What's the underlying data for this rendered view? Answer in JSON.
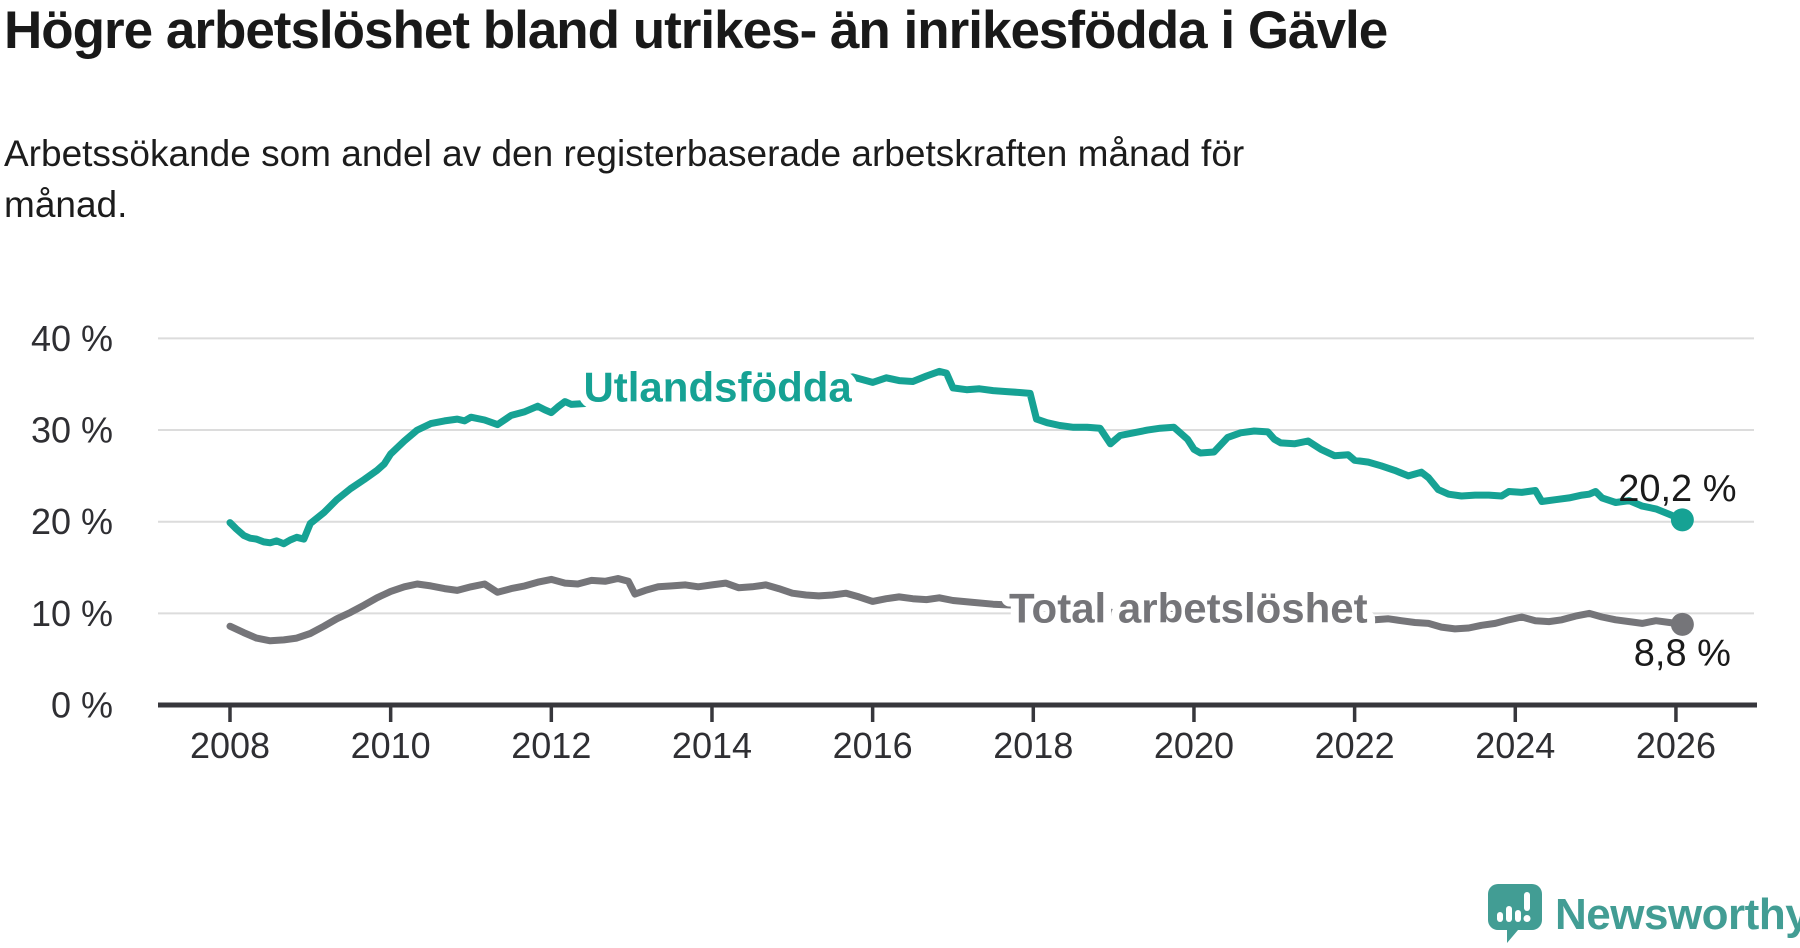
{
  "header": {
    "title": "Högre arbetslöshet bland utrikes- än inrikesfödda i Gävle",
    "subtitle": "Arbetssökande som andel av den registerbaserade arbetskraften månad för månad."
  },
  "footer": {
    "brand": "Newsworthy",
    "brand_color": "#429d94"
  },
  "chart_data": {
    "type": "line",
    "title": "Högre arbetslöshet bland utrikes- än inrikesfödda i Gävle",
    "xlabel": "",
    "ylabel": "",
    "x_domain": [
      2008,
      2026.2
    ],
    "ylim": [
      0,
      42
    ],
    "grid": true,
    "gridline_color": "#dcdcdc",
    "axis_color": "#37373c",
    "tick_label_color": "#2f2f33",
    "value_label_color": "#1a1a1a",
    "y_ticks": [
      {
        "value": 0,
        "label": "0 %"
      },
      {
        "value": 10,
        "label": "10 %"
      },
      {
        "value": 20,
        "label": "20 %"
      },
      {
        "value": 30,
        "label": "30 %"
      },
      {
        "value": 40,
        "label": "40 %"
      }
    ],
    "x_ticks": [
      {
        "value": 2008,
        "label": "2008"
      },
      {
        "value": 2010,
        "label": "2010"
      },
      {
        "value": 2012,
        "label": "2012"
      },
      {
        "value": 2014,
        "label": "2014"
      },
      {
        "value": 2016,
        "label": "2016"
      },
      {
        "value": 2018,
        "label": "2018"
      },
      {
        "value": 2020,
        "label": "2020"
      },
      {
        "value": 2022,
        "label": "2022"
      },
      {
        "value": 2024,
        "label": "2024"
      },
      {
        "value": 2026,
        "label": "2026"
      }
    ],
    "series": [
      {
        "name": "Utlandsfödda",
        "color": "#16a294",
        "end_label": "20,2 %",
        "end_value": 20.2,
        "label_pos": {
          "x": 2014.07,
          "y": 34.7
        },
        "points": [
          [
            2008.0,
            19.9
          ],
          [
            2008.08,
            19.2
          ],
          [
            2008.17,
            18.5
          ],
          [
            2008.25,
            18.2
          ],
          [
            2008.33,
            18.1
          ],
          [
            2008.42,
            17.8
          ],
          [
            2008.5,
            17.7
          ],
          [
            2008.58,
            17.9
          ],
          [
            2008.67,
            17.6
          ],
          [
            2008.75,
            18.0
          ],
          [
            2008.83,
            18.3
          ],
          [
            2008.92,
            18.1
          ],
          [
            2009.0,
            19.8
          ],
          [
            2009.17,
            21.0
          ],
          [
            2009.33,
            22.4
          ],
          [
            2009.5,
            23.6
          ],
          [
            2009.67,
            24.6
          ],
          [
            2009.83,
            25.6
          ],
          [
            2009.92,
            26.3
          ],
          [
            2010.0,
            27.4
          ],
          [
            2010.17,
            28.8
          ],
          [
            2010.33,
            30.0
          ],
          [
            2010.5,
            30.7
          ],
          [
            2010.67,
            31.0
          ],
          [
            2010.83,
            31.2
          ],
          [
            2010.92,
            31.0
          ],
          [
            2011.0,
            31.4
          ],
          [
            2011.17,
            31.1
          ],
          [
            2011.33,
            30.6
          ],
          [
            2011.5,
            31.6
          ],
          [
            2011.67,
            32.0
          ],
          [
            2011.83,
            32.6
          ],
          [
            2011.92,
            32.2
          ],
          [
            2012.0,
            31.9
          ],
          [
            2012.08,
            32.5
          ],
          [
            2012.17,
            33.1
          ],
          [
            2012.25,
            32.8
          ],
          [
            2012.42,
            32.9
          ],
          [
            2012.58,
            33.0
          ],
          [
            2012.75,
            33.2
          ],
          [
            2012.92,
            33.0
          ],
          [
            2013.08,
            33.5
          ],
          [
            2013.25,
            33.4
          ],
          [
            2013.42,
            33.7
          ],
          [
            2013.58,
            33.9
          ],
          [
            2013.75,
            34.1
          ],
          [
            2013.92,
            34.0
          ],
          [
            2014.08,
            34.3
          ],
          [
            2014.25,
            34.1
          ],
          [
            2014.42,
            34.4
          ],
          [
            2014.58,
            34.6
          ],
          [
            2014.75,
            34.8
          ],
          [
            2014.92,
            35.0
          ],
          [
            2015.08,
            35.1
          ],
          [
            2015.25,
            35.3
          ],
          [
            2015.42,
            35.4
          ],
          [
            2015.58,
            35.5
          ],
          [
            2015.75,
            35.8
          ],
          [
            2015.92,
            35.4
          ],
          [
            2016.0,
            35.2
          ],
          [
            2016.17,
            35.7
          ],
          [
            2016.33,
            35.4
          ],
          [
            2016.5,
            35.3
          ],
          [
            2016.67,
            35.9
          ],
          [
            2016.83,
            36.4
          ],
          [
            2016.92,
            36.2
          ],
          [
            2017.0,
            34.6
          ],
          [
            2017.17,
            34.4
          ],
          [
            2017.33,
            34.5
          ],
          [
            2017.5,
            34.3
          ],
          [
            2017.67,
            34.2
          ],
          [
            2017.83,
            34.1
          ],
          [
            2017.96,
            34.0
          ],
          [
            2018.04,
            31.2
          ],
          [
            2018.17,
            30.8
          ],
          [
            2018.33,
            30.5
          ],
          [
            2018.5,
            30.3
          ],
          [
            2018.67,
            30.3
          ],
          [
            2018.83,
            30.2
          ],
          [
            2018.96,
            28.5
          ],
          [
            2019.08,
            29.4
          ],
          [
            2019.25,
            29.7
          ],
          [
            2019.42,
            30.0
          ],
          [
            2019.58,
            30.2
          ],
          [
            2019.75,
            30.3
          ],
          [
            2019.92,
            29.0
          ],
          [
            2020.0,
            27.9
          ],
          [
            2020.08,
            27.5
          ],
          [
            2020.25,
            27.6
          ],
          [
            2020.42,
            29.2
          ],
          [
            2020.58,
            29.7
          ],
          [
            2020.75,
            29.9
          ],
          [
            2020.92,
            29.8
          ],
          [
            2021.0,
            29.0
          ],
          [
            2021.08,
            28.6
          ],
          [
            2021.25,
            28.5
          ],
          [
            2021.42,
            28.8
          ],
          [
            2021.58,
            27.9
          ],
          [
            2021.75,
            27.2
          ],
          [
            2021.92,
            27.3
          ],
          [
            2022.0,
            26.7
          ],
          [
            2022.17,
            26.5
          ],
          [
            2022.33,
            26.1
          ],
          [
            2022.5,
            25.6
          ],
          [
            2022.67,
            25.0
          ],
          [
            2022.83,
            25.4
          ],
          [
            2022.92,
            24.8
          ],
          [
            2023.04,
            23.5
          ],
          [
            2023.17,
            23.0
          ],
          [
            2023.33,
            22.8
          ],
          [
            2023.5,
            22.9
          ],
          [
            2023.67,
            22.9
          ],
          [
            2023.83,
            22.8
          ],
          [
            2023.92,
            23.3
          ],
          [
            2024.08,
            23.2
          ],
          [
            2024.25,
            23.4
          ],
          [
            2024.33,
            22.2
          ],
          [
            2024.5,
            22.4
          ],
          [
            2024.67,
            22.6
          ],
          [
            2024.83,
            22.9
          ],
          [
            2024.92,
            23.0
          ],
          [
            2025.0,
            23.3
          ],
          [
            2025.08,
            22.6
          ],
          [
            2025.25,
            22.1
          ],
          [
            2025.42,
            22.3
          ],
          [
            2025.58,
            21.7
          ],
          [
            2025.75,
            21.4
          ],
          [
            2025.92,
            20.8
          ],
          [
            2026.08,
            20.2
          ]
        ]
      },
      {
        "name": "Total arbetslöshet",
        "color": "#757579",
        "end_label": "8,8 %",
        "end_value": 8.8,
        "label_pos": {
          "x": 2019.93,
          "y": 10.6
        },
        "points": [
          [
            2008.0,
            8.6
          ],
          [
            2008.17,
            7.9
          ],
          [
            2008.33,
            7.3
          ],
          [
            2008.5,
            7.0
          ],
          [
            2008.67,
            7.1
          ],
          [
            2008.83,
            7.3
          ],
          [
            2009.0,
            7.8
          ],
          [
            2009.17,
            8.6
          ],
          [
            2009.33,
            9.4
          ],
          [
            2009.5,
            10.1
          ],
          [
            2009.67,
            10.9
          ],
          [
            2009.83,
            11.7
          ],
          [
            2010.0,
            12.4
          ],
          [
            2010.17,
            12.9
          ],
          [
            2010.33,
            13.2
          ],
          [
            2010.5,
            13.0
          ],
          [
            2010.67,
            12.7
          ],
          [
            2010.83,
            12.5
          ],
          [
            2011.0,
            12.9
          ],
          [
            2011.17,
            13.2
          ],
          [
            2011.33,
            12.3
          ],
          [
            2011.5,
            12.7
          ],
          [
            2011.67,
            13.0
          ],
          [
            2011.83,
            13.4
          ],
          [
            2012.0,
            13.7
          ],
          [
            2012.17,
            13.3
          ],
          [
            2012.33,
            13.2
          ],
          [
            2012.5,
            13.6
          ],
          [
            2012.67,
            13.5
          ],
          [
            2012.83,
            13.8
          ],
          [
            2012.96,
            13.5
          ],
          [
            2013.04,
            12.1
          ],
          [
            2013.17,
            12.5
          ],
          [
            2013.33,
            12.9
          ],
          [
            2013.5,
            13.0
          ],
          [
            2013.67,
            13.1
          ],
          [
            2013.83,
            12.9
          ],
          [
            2014.0,
            13.1
          ],
          [
            2014.17,
            13.3
          ],
          [
            2014.33,
            12.8
          ],
          [
            2014.5,
            12.9
          ],
          [
            2014.67,
            13.1
          ],
          [
            2014.83,
            12.7
          ],
          [
            2015.0,
            12.2
          ],
          [
            2015.17,
            12.0
          ],
          [
            2015.33,
            11.9
          ],
          [
            2015.5,
            12.0
          ],
          [
            2015.67,
            12.2
          ],
          [
            2015.83,
            11.8
          ],
          [
            2016.0,
            11.3
          ],
          [
            2016.17,
            11.6
          ],
          [
            2016.33,
            11.8
          ],
          [
            2016.5,
            11.6
          ],
          [
            2016.67,
            11.5
          ],
          [
            2016.83,
            11.7
          ],
          [
            2017.0,
            11.4
          ],
          [
            2017.25,
            11.2
          ],
          [
            2017.5,
            11.0
          ],
          [
            2017.75,
            10.9
          ],
          [
            2018.0,
            10.7
          ],
          [
            2018.25,
            10.5
          ],
          [
            2018.5,
            10.4
          ],
          [
            2018.75,
            10.2
          ],
          [
            2019.0,
            10.1
          ],
          [
            2019.25,
            10.0
          ],
          [
            2019.5,
            10.0
          ],
          [
            2019.75,
            10.1
          ],
          [
            2020.0,
            10.3
          ],
          [
            2020.25,
            10.7
          ],
          [
            2020.5,
            10.8
          ],
          [
            2020.75,
            10.6
          ],
          [
            2021.0,
            10.2
          ],
          [
            2021.25,
            9.9
          ],
          [
            2021.5,
            9.7
          ],
          [
            2021.75,
            9.5
          ],
          [
            2022.0,
            9.4
          ],
          [
            2022.25,
            9.3
          ],
          [
            2022.42,
            9.4
          ],
          [
            2022.58,
            9.2
          ],
          [
            2022.75,
            9.0
          ],
          [
            2022.92,
            8.9
          ],
          [
            2023.08,
            8.5
          ],
          [
            2023.25,
            8.3
          ],
          [
            2023.42,
            8.4
          ],
          [
            2023.58,
            8.7
          ],
          [
            2023.75,
            8.9
          ],
          [
            2023.92,
            9.3
          ],
          [
            2024.08,
            9.6
          ],
          [
            2024.25,
            9.2
          ],
          [
            2024.42,
            9.1
          ],
          [
            2024.58,
            9.3
          ],
          [
            2024.75,
            9.7
          ],
          [
            2024.92,
            10.0
          ],
          [
            2025.08,
            9.6
          ],
          [
            2025.25,
            9.3
          ],
          [
            2025.42,
            9.1
          ],
          [
            2025.58,
            8.9
          ],
          [
            2025.75,
            9.2
          ],
          [
            2025.92,
            9.0
          ],
          [
            2026.08,
            8.8
          ]
        ]
      }
    ]
  }
}
